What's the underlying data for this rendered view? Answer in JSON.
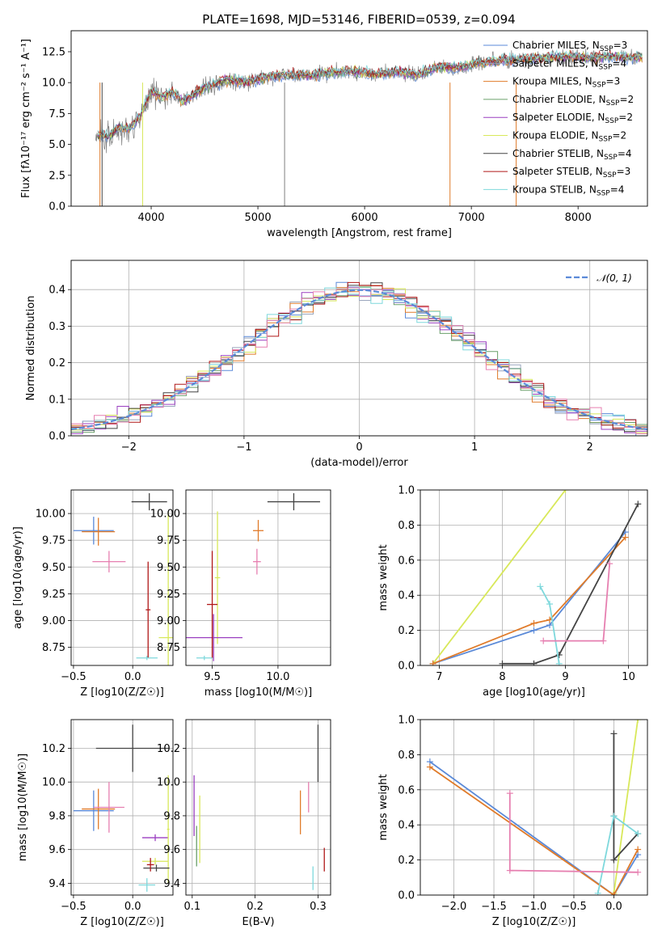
{
  "figure": {
    "title": "PLATE=1698, MJD=53146, FIBERID=0539, z=0.094"
  },
  "colors": {
    "chabrier_miles": "#5b8ad8",
    "salpeter_miles": "#9aa6bd",
    "kroupa_miles": "#e07b2a",
    "chabrier_elodie": "#6aa06a",
    "salpeter_elodie": "#9a3fc0",
    "kroupa_elodie": "#d8e85a",
    "chabrier_stelib": "#444444",
    "salpeter_stelib": "#b01818",
    "kroupa_stelib": "#7ed8dc",
    "pink": "#e67fb0",
    "data": "#808080",
    "normal": "#5b8ad8"
  },
  "chart_data": [
    {
      "id": "spectrum",
      "type": "line",
      "title": "PLATE=1698, MJD=53146, FIBERID=0539, z=0.094",
      "xlabel": "wavelength [Angstrom, rest frame]",
      "ylabel": "Flux [fλ10⁻¹⁷ erg cm⁻² s⁻¹ A⁻¹]",
      "xlim": [
        3250,
        8650
      ],
      "ylim": [
        0,
        14.2
      ],
      "xticks": [
        "4000",
        "5000",
        "6000",
        "7000",
        "8000"
      ],
      "yticks": [
        "0.0",
        "2.5",
        "5.0",
        "7.5",
        "10.0",
        "12.5"
      ],
      "legend_position": "right",
      "series": [
        {
          "name": "Chabrier MILES, N_SSP=3"
        },
        {
          "name": "Salpeter MILES, N_SSP=4"
        },
        {
          "name": "Kroupa MILES, N_SSP=3"
        },
        {
          "name": "Chabrier ELODIE, N_SSP=2"
        },
        {
          "name": "Salpeter ELODIE, N_SSP=2"
        },
        {
          "name": "Kroupa ELODIE, N_SSP=2"
        },
        {
          "name": "Chabrier STELIB, N_SSP=4"
        },
        {
          "name": "Salpeter STELIB, N_SSP=3"
        },
        {
          "name": "Kroupa STELIB, N_SSP=4"
        }
      ],
      "continuum": {
        "x": [
          3500,
          3600,
          3700,
          3800,
          3900,
          4000,
          4100,
          4200,
          4300,
          4500,
          4700,
          4900,
          5100,
          5300,
          5500,
          5700,
          5900,
          6100,
          6300,
          6500,
          6700,
          6900,
          7100,
          7300,
          7500,
          7700,
          7900,
          8100,
          8300,
          8500
        ],
        "y": [
          5.8,
          5.6,
          6.4,
          6.3,
          7.3,
          9.3,
          8.8,
          9.2,
          8.5,
          9.6,
          10.2,
          10.0,
          10.5,
          10.6,
          10.6,
          10.8,
          10.9,
          10.7,
          10.9,
          10.6,
          11.3,
          11.2,
          11.6,
          11.8,
          11.9,
          12.0,
          12.1,
          12.0,
          12.1,
          12.0
        ]
      }
    },
    {
      "id": "residuals",
      "type": "line",
      "xlabel": "(data-model)/error",
      "ylabel": "Normed distribution",
      "xlim": [
        -2.5,
        2.5
      ],
      "ylim": [
        0,
        0.48
      ],
      "xticks": [
        "−2",
        "−1",
        "0",
        "1",
        "2"
      ],
      "yticks": [
        "0.0",
        "0.1",
        "0.2",
        "0.3",
        "0.4"
      ],
      "legend": "𝒩(0, 1)",
      "legend_position": "top-right"
    },
    {
      "id": "age_vs_Z",
      "type": "scatter",
      "xlabel": "Z [log10(Z/Z☉)]",
      "ylabel": "age  [log10(age/yr)]",
      "xlim": [
        -0.52,
        0.34
      ],
      "ylim": [
        8.58,
        10.22
      ],
      "xticks": [
        "−0.5",
        "0.0"
      ],
      "yticks": [
        "8.75",
        "9.00",
        "9.25",
        "9.50",
        "9.75",
        "10.00"
      ],
      "points": [
        {
          "x": -0.33,
          "y": 9.84,
          "xerr": 0.17,
          "yerr": 0.13,
          "color": "chabrier_miles"
        },
        {
          "x": -0.29,
          "y": 9.83,
          "xerr": 0.14,
          "yerr": 0.13,
          "color": "kroupa_miles"
        },
        {
          "x": -0.2,
          "y": 9.55,
          "xerr": 0.14,
          "yerr": 0.1,
          "color": "pink"
        },
        {
          "x": 0.14,
          "y": 10.11,
          "xerr": 0.15,
          "yerr": 0.08,
          "color": "chabrier_stelib"
        },
        {
          "x": 0.3,
          "y": 8.84,
          "xerr": 0.08,
          "yerr": 1.18,
          "color": "kroupa_elodie"
        },
        {
          "x": 0.13,
          "y": 9.1,
          "xerr": 0.02,
          "yerr": 0.45,
          "color": "salpeter_stelib"
        },
        {
          "x": 0.12,
          "y": 8.65,
          "xerr": 0.09,
          "yerr": 0.02,
          "color": "kroupa_stelib"
        }
      ]
    },
    {
      "id": "age_vs_mass",
      "type": "scatter",
      "xlabel": "mass [log10(M/M☉)]",
      "ylabel": "",
      "xlim": [
        9.3,
        10.4
      ],
      "ylim": [
        8.58,
        10.22
      ],
      "xticks": [
        "9.5",
        "10.0"
      ],
      "yticks": [
        "8.75",
        "9.00",
        "9.25",
        "9.50",
        "9.75",
        "10.00"
      ],
      "points": [
        {
          "x": 10.12,
          "y": 10.11,
          "xerr": 0.2,
          "yerr": 0.08,
          "color": "chabrier_stelib"
        },
        {
          "x": 9.85,
          "y": 9.84,
          "xerr": 0.04,
          "yerr": 0.1,
          "color": "kroupa_miles"
        },
        {
          "x": 9.84,
          "y": 9.55,
          "xerr": 0.03,
          "yerr": 0.12,
          "color": "pink"
        },
        {
          "x": 9.54,
          "y": 9.4,
          "xerr": 0.02,
          "yerr": 0.62,
          "color": "kroupa_elodie"
        },
        {
          "x": 9.51,
          "y": 8.84,
          "xerr": 0.22,
          "yerr": 0.22,
          "color": "salpeter_elodie"
        },
        {
          "x": 9.5,
          "y": 9.15,
          "xerr": 0.04,
          "yerr": 0.5,
          "color": "salpeter_stelib"
        },
        {
          "x": 9.44,
          "y": 8.65,
          "xerr": 0.06,
          "yerr": 0.02,
          "color": "kroupa_stelib"
        }
      ]
    },
    {
      "id": "mass_weight_vs_age",
      "type": "line",
      "xlabel": "age  [log10(age/yr)]",
      "ylabel": "mass weight",
      "xlim": [
        6.7,
        10.3
      ],
      "ylim": [
        0,
        1.0
      ],
      "xticks": [
        "7",
        "8",
        "9",
        "10"
      ],
      "yticks": [
        "0.0",
        "0.2",
        "0.4",
        "0.6",
        "0.8",
        "1.0"
      ],
      "series": [
        {
          "color": "kroupa_elodie",
          "x": [
            6.9,
            9.0
          ],
          "y": [
            0.01,
            1.0
          ]
        },
        {
          "color": "chabrier_miles",
          "x": [
            6.9,
            8.5,
            8.75,
            9.95
          ],
          "y": [
            0.01,
            0.2,
            0.23,
            0.76
          ]
        },
        {
          "color": "kroupa_miles",
          "x": [
            6.9,
            8.5,
            8.75,
            9.95
          ],
          "y": [
            0.01,
            0.24,
            0.26,
            0.73
          ]
        },
        {
          "color": "chabrier_stelib",
          "x": [
            8.0,
            8.5,
            8.9,
            10.15
          ],
          "y": [
            0.01,
            0.01,
            0.06,
            0.92
          ]
        },
        {
          "color": "kroupa_stelib",
          "x": [
            8.6,
            8.75,
            8.9
          ],
          "y": [
            0.45,
            0.35,
            0.01
          ]
        },
        {
          "color": "pink",
          "x": [
            8.65,
            9.6,
            9.7
          ],
          "y": [
            0.14,
            0.14,
            0.58
          ]
        }
      ]
    },
    {
      "id": "mass_vs_Z",
      "type": "scatter",
      "xlabel": "Z [log10(Z/Z☉)]",
      "ylabel": "mass [log10(M/M☉)]",
      "xlim": [
        -0.52,
        0.34
      ],
      "ylim": [
        9.33,
        10.37
      ],
      "xticks": [
        "−0.5",
        "0.0"
      ],
      "yticks": [
        "9.4",
        "9.6",
        "9.8",
        "10.0",
        "10.2"
      ],
      "points": [
        {
          "x": 0.0,
          "y": 10.2,
          "xerr": 0.31,
          "yerr": 0.14,
          "color": "chabrier_stelib"
        },
        {
          "x": -0.33,
          "y": 9.83,
          "xerr": 0.17,
          "yerr": 0.12,
          "color": "chabrier_miles"
        },
        {
          "x": -0.29,
          "y": 9.84,
          "xerr": 0.14,
          "yerr": 0.12,
          "color": "kroupa_miles"
        },
        {
          "x": -0.2,
          "y": 9.85,
          "xerr": 0.13,
          "yerr": 0.15,
          "color": "pink"
        },
        {
          "x": 0.19,
          "y": 9.67,
          "xerr": 0.11,
          "yerr": 0.02,
          "color": "salpeter_elodie"
        },
        {
          "x": 0.3,
          "y": 9.72,
          "xerr": 0.01,
          "yerr": 0.32,
          "color": "kroupa_elodie"
        },
        {
          "x": 0.19,
          "y": 9.53,
          "xerr": 0.11,
          "yerr": 0.02,
          "color": "kroupa_elodie"
        },
        {
          "x": 0.2,
          "y": 9.49,
          "xerr": 0.11,
          "yerr": 0.02,
          "color": "chabrier_stelib"
        },
        {
          "x": 0.15,
          "y": 9.51,
          "xerr": 0.03,
          "yerr": 0.04,
          "color": "salpeter_stelib"
        },
        {
          "x": 0.12,
          "y": 9.39,
          "xerr": 0.07,
          "yerr": 0.04,
          "color": "kroupa_stelib"
        }
      ]
    },
    {
      "id": "mass_vs_ebv",
      "type": "scatter",
      "xlabel": "E(B-V)",
      "ylabel": "",
      "xlim": [
        0.09,
        0.32
      ],
      "ylim": [
        9.33,
        10.37
      ],
      "xticks": [
        "0.1",
        "0.2",
        "0.3"
      ],
      "yticks": [
        "9.4",
        "9.6",
        "9.8",
        "10.0",
        "10.2"
      ],
      "points": [
        {
          "x": 0.3,
          "y": 10.17,
          "yerr": 0.17,
          "color": "chabrier_stelib"
        },
        {
          "x": 0.285,
          "y": 9.91,
          "yerr": 0.09,
          "color": "pink"
        },
        {
          "x": 0.272,
          "y": 9.82,
          "yerr": 0.13,
          "color": "kroupa_miles"
        },
        {
          "x": 0.103,
          "y": 9.86,
          "yerr": 0.18,
          "color": "salpeter_elodie"
        },
        {
          "x": 0.112,
          "y": 9.72,
          "yerr": 0.2,
          "color": "kroupa_elodie"
        },
        {
          "x": 0.107,
          "y": 9.62,
          "yerr": 0.12,
          "color": "chabrier_elodie"
        },
        {
          "x": 0.31,
          "y": 9.54,
          "yerr": 0.07,
          "color": "salpeter_stelib"
        },
        {
          "x": 0.292,
          "y": 9.43,
          "yerr": 0.07,
          "color": "kroupa_stelib"
        }
      ]
    },
    {
      "id": "mass_weight_vs_Z",
      "type": "line",
      "xlabel": "Z [log10(Z/Z☉)]",
      "ylabel": "mass weight",
      "xlim": [
        -2.42,
        0.42
      ],
      "ylim": [
        0,
        1.0
      ],
      "xticks": [
        "−2.0",
        "−1.5",
        "−1.0",
        "−0.5",
        "0.0"
      ],
      "yticks": [
        "0.0",
        "0.2",
        "0.4",
        "0.6",
        "0.8",
        "1.0"
      ],
      "series": [
        {
          "color": "kroupa_elodie",
          "x": [
            0.0,
            0.3
          ],
          "y": [
            0.01,
            1.0
          ]
        },
        {
          "color": "chabrier_miles",
          "x": [
            -2.3,
            0.0,
            0.3
          ],
          "y": [
            0.76,
            0.0,
            0.23
          ]
        },
        {
          "color": "kroupa_miles",
          "x": [
            -2.3,
            0.0,
            0.3
          ],
          "y": [
            0.73,
            0.0,
            0.26
          ]
        },
        {
          "color": "chabrier_stelib",
          "x": [
            0.0,
            0.0,
            0.0,
            0.3
          ],
          "y": [
            0.92,
            0.45,
            0.2,
            0.35
          ]
        },
        {
          "color": "kroupa_stelib",
          "x": [
            -0.2,
            0.0,
            0.3
          ],
          "y": [
            0.01,
            0.45,
            0.35
          ]
        },
        {
          "color": "pink",
          "x": [
            -1.3,
            -1.3,
            0.3
          ],
          "y": [
            0.58,
            0.14,
            0.13
          ]
        }
      ]
    }
  ]
}
